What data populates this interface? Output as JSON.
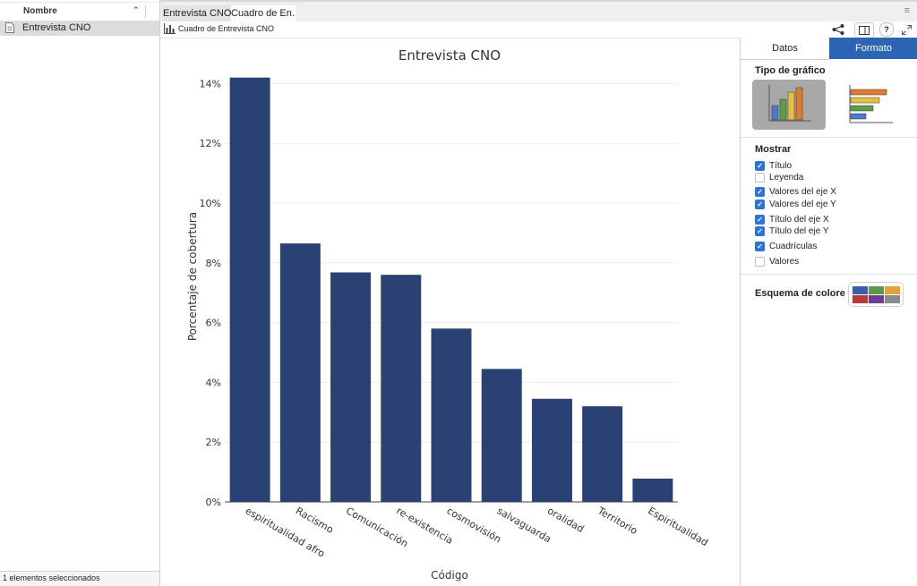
{
  "sidebar": {
    "header_label": "Nombre",
    "items": [
      {
        "label": "Entrevista CNO"
      }
    ],
    "footer_status": "1 elementos seleccionados"
  },
  "tabs": [
    {
      "label": "Entrevista CNO"
    },
    {
      "label": "Cuadro de En..."
    }
  ],
  "toolbar": {
    "title": "Cuadro de Entrevista CNO"
  },
  "panel": {
    "tabs": [
      {
        "label": "Datos"
      },
      {
        "label": "Formato"
      }
    ],
    "active_tab": "Formato",
    "chart_type_title": "Tipo de gráfico",
    "show_title": "Mostrar",
    "options": [
      {
        "label": "Título",
        "checked": true
      },
      {
        "label": "Leyenda",
        "checked": false
      },
      {
        "label": "Valores del eje X",
        "checked": true
      },
      {
        "label": "Valores del eje Y",
        "checked": true
      },
      {
        "label": "Título del eje X",
        "checked": true
      },
      {
        "label": "Título del eje Y",
        "checked": true
      },
      {
        "label": "Cuadrículas",
        "checked": true
      },
      {
        "label": "Valores",
        "checked": false
      }
    ],
    "scheme_title": "Esquema de colore",
    "scheme_colors": [
      "#3b5ea6",
      "#5a9a4a",
      "#e0a23c",
      "#b83b3b",
      "#6a3f8f",
      "#8a8a8a"
    ]
  },
  "colors": {
    "accent": "#2b65b3",
    "bar": "#2a4273"
  },
  "chart_data": {
    "type": "bar",
    "title": "Entrevista CNO",
    "xlabel": "Código",
    "ylabel": "Porcentaje de cobertura",
    "categories": [
      "espiritualidad afro",
      "Racismo",
      "Comunicación",
      "re-existencia",
      "cosmovisión",
      "salvaguarda",
      "oralidad",
      "Territorio",
      "Espiritualidad"
    ],
    "values": [
      14.2,
      8.65,
      7.68,
      7.6,
      5.8,
      4.45,
      3.45,
      3.2,
      0.78
    ],
    "ylim": [
      0,
      15
    ],
    "yticks": [
      "0%",
      "2%",
      "4%",
      "6%",
      "8%",
      "10%",
      "12%",
      "14%"
    ],
    "grid": true,
    "legend": false
  }
}
